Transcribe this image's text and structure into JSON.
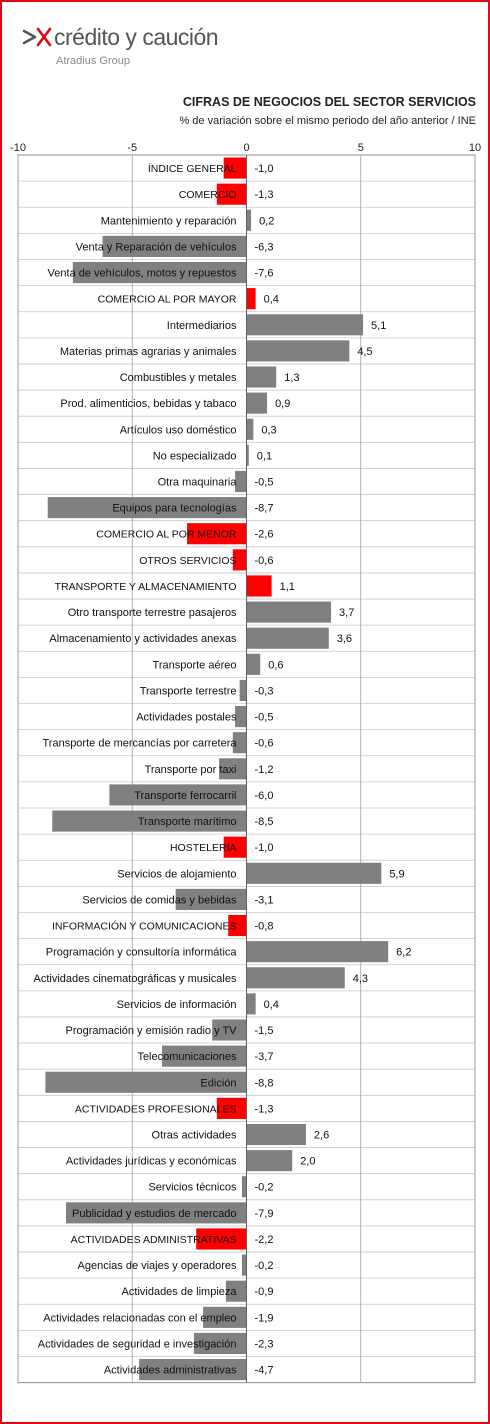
{
  "header": {
    "logo_text": "crédito y caución",
    "logo_subtext": "Atradius Group",
    "logo_icon": "arrow-x-icon"
  },
  "colors": {
    "brand_red": "#e30613",
    "highlight_bar": "#ff0000",
    "detail_bar": "#808080",
    "grid": "#c8c8c8"
  },
  "chart_data": {
    "type": "bar",
    "orientation": "horizontal",
    "title": "CIFRAS DE NEGOCIOS DEL SECTOR SERVICIOS",
    "subtitle": "% de variación sobre el mismo periodo del año anterior / INE",
    "xlim": [
      -10,
      10
    ],
    "xticks": [
      -10,
      -5,
      0,
      5,
      10
    ],
    "xtick_labels": [
      "-10",
      "-5",
      "0",
      "5",
      "10"
    ],
    "grid": true,
    "categories": [
      "ÍNDICE GENERAL",
      "COMERCIO",
      "Mantenimiento y reparación",
      "Venta y Reparación  de vehículos",
      "Venta de vehículos, motos y repuestos",
      "COMERCIO AL POR MAYOR",
      "Intermediarios",
      "Materias primas agrarias  y animales",
      "Combustibles y metales",
      "Prod. alimenticios, bebidas y tabaco",
      "Artículos uso doméstico",
      "No especializado",
      "Otra maquinaria",
      "Equipos para tecnologías",
      "COMERCIO AL POR MENOR",
      "OTROS SERVICIOS",
      "TRANSPORTE Y ALMACENAMIENTO",
      "Otro transporte terrestre pasajeros",
      "Almacenamiento y actividades anexas",
      "Transporte aéreo",
      "Transporte terrestre",
      "Actividades postales",
      "Transporte de mercancías por carretera",
      "Transporte por taxi",
      "Transporte ferrocarril",
      "Transporte marítimo",
      "HOSTELERÍA",
      "Servicios de alojamiento",
      "Servicios de comidas y bebidas",
      "INFORMACIÓN Y COMUNICACIONES",
      "Programación y consultoría informática",
      "Actividades cinematográficas  y musicales",
      "Servicios de información",
      "Programación y emisión radio y TV",
      "Telecomunicaciones",
      "Edición",
      "ACTIVIDADES PROFESIONALES",
      "Otras actividades",
      "Actividades jurídicas  y económicas",
      "Servicios técnicos",
      "Publicidad  y estudios de mercado",
      "ACTIVIDADES ADMINISTRATIVAS",
      "Agencias de viajes y operadores",
      "Actividades de limpieza",
      "Actividades relacionadas  con el empleo",
      "Actividades de seguridad e investigación",
      "Actividades administrativas"
    ],
    "values": [
      -1.0,
      -1.3,
      0.2,
      -6.3,
      -7.6,
      0.4,
      5.1,
      4.5,
      1.3,
      0.9,
      0.3,
      0.1,
      -0.5,
      -8.7,
      -2.6,
      -0.6,
      1.1,
      3.7,
      3.6,
      0.6,
      -0.3,
      -0.5,
      -0.6,
      -1.2,
      -6.0,
      -8.5,
      -1.0,
      5.9,
      -3.1,
      -0.8,
      6.2,
      4.3,
      0.4,
      -1.5,
      -3.7,
      -8.8,
      -1.3,
      2.6,
      2.0,
      -0.2,
      -7.9,
      -2.2,
      -0.2,
      -0.9,
      -1.9,
      -2.3,
      -4.7
    ],
    "value_labels": [
      "-1,0",
      "-1,3",
      "0,2",
      "-6,3",
      "-7,6",
      "0,4",
      "5,1",
      "4,5",
      "1,3",
      "0,9",
      "0,3",
      "0,1",
      "-0,5",
      "-8,7",
      "-2,6",
      "-0,6",
      "1,1",
      "3,7",
      "3,6",
      "0,6",
      "-0,3",
      "-0,5",
      "-0,6",
      "-1,2",
      "-6,0",
      "-8,5",
      "-1,0",
      "5,9",
      "-3,1",
      "-0,8",
      "6,2",
      "4,3",
      "0,4",
      "-1,5",
      "-3,7",
      "-8,8",
      "-1,3",
      "2,6",
      "2,0",
      "-0,2",
      "-7,9",
      "-2,2",
      "-0,2",
      "-0,9",
      "-1,9",
      "-2,3",
      "-4,7"
    ],
    "highlighted": [
      "ÍNDICE GENERAL",
      "COMERCIO",
      "COMERCIO AL POR MAYOR",
      "COMERCIO AL POR MENOR",
      "OTROS SERVICIOS",
      "TRANSPORTE Y ALMACENAMIENTO",
      "HOSTELERÍA",
      "INFORMACIÓN Y COMUNICACIONES",
      "ACTIVIDADES PROFESIONALES",
      "ACTIVIDADES ADMINISTRATIVAS"
    ]
  }
}
